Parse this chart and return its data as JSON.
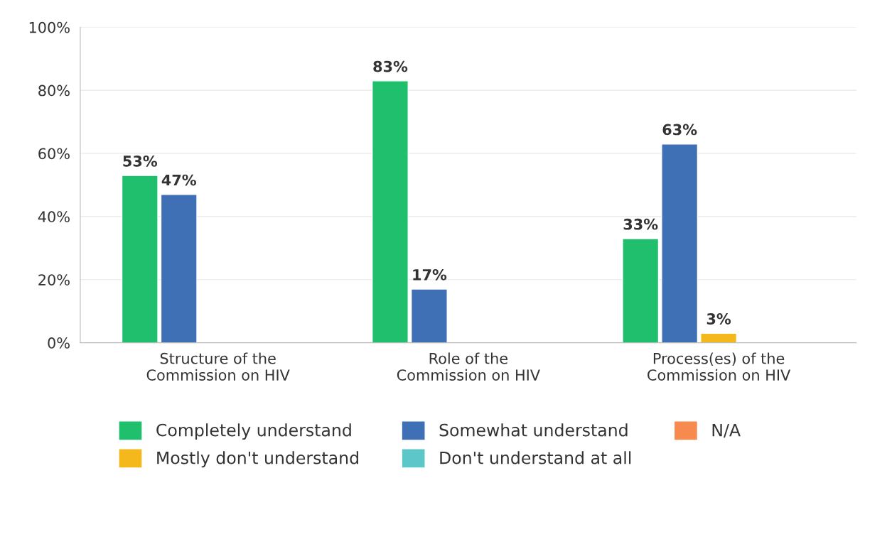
{
  "chart_data": {
    "type": "bar",
    "categories": [
      "Structure of the\nCommission on HIV",
      "Role of the\nCommission on HIV",
      "Process(es) of the\nCommission on HIV"
    ],
    "series": [
      {
        "name": "Completely understand",
        "color": "#1fbf6e",
        "values": [
          53,
          83,
          33
        ],
        "value_labels": [
          "53%",
          "83%",
          "33%"
        ]
      },
      {
        "name": "Somewhat understand",
        "color": "#3f6fb5",
        "values": [
          47,
          17,
          63
        ],
        "value_labels": [
          "47%",
          "17%",
          "63%"
        ]
      },
      {
        "name": "Mostly don't understand",
        "color": "#f5b81c",
        "values": [
          null,
          null,
          3
        ],
        "value_labels": [
          null,
          null,
          "3%"
        ]
      },
      {
        "name": "Don't understand at all",
        "color": "#5cc6c9",
        "values": [
          null,
          null,
          null
        ]
      },
      {
        "name": "N/A",
        "color": "#f78b4f",
        "values": [
          null,
          null,
          null
        ]
      }
    ],
    "ylim": [
      0,
      100
    ],
    "yticks": [
      {
        "value": 0,
        "label": "0%"
      },
      {
        "value": 20,
        "label": "20%"
      },
      {
        "value": 40,
        "label": "40%"
      },
      {
        "value": 60,
        "label": "60%"
      },
      {
        "value": 80,
        "label": "80%"
      },
      {
        "value": 100,
        "label": "100%"
      }
    ],
    "grid": "y",
    "legend": "bottom"
  }
}
